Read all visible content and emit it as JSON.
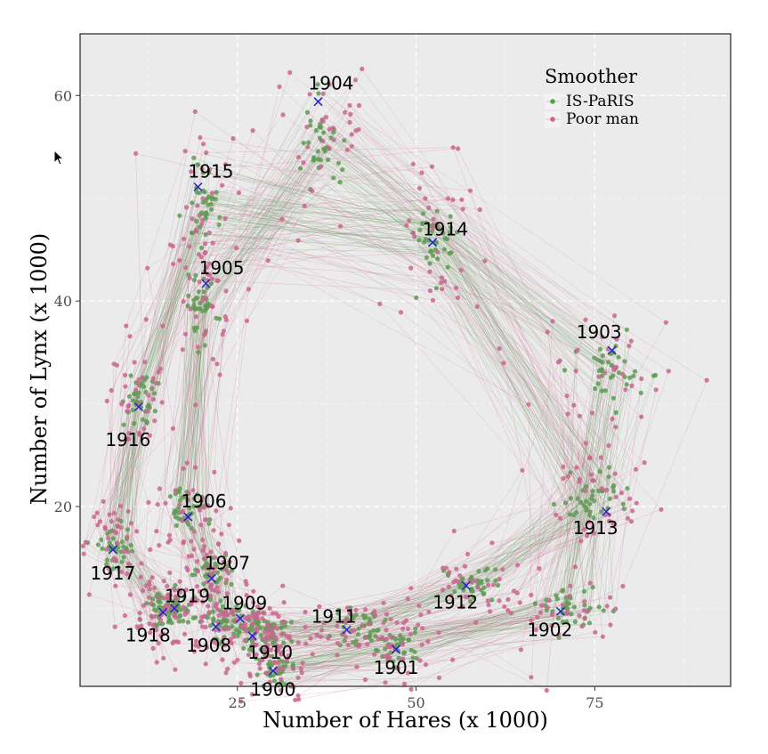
{
  "chart_data": {
    "type": "scatter",
    "xlabel": "Number of Hares (x 1000)",
    "ylabel": "Number of Lynx (x 1000)",
    "xlim": [
      3,
      94
    ],
    "ylim": [
      2.5,
      66
    ],
    "xticks": [
      25,
      50,
      75
    ],
    "yticks": [
      20,
      40,
      60
    ],
    "grid": true,
    "legend": {
      "title": "Smoother",
      "placement": "top-right",
      "entries": [
        {
          "name": "IS-PaRIS",
          "color": "#5f9a55"
        },
        {
          "name": "Poor man",
          "color": "#c9668f"
        }
      ]
    },
    "colors": {
      "panel": "#ebebeb",
      "grid": "#ffffff",
      "is_paris": "#5f9a55",
      "poor_man": "#c9668f",
      "observation": "#2323c8"
    },
    "observations": [
      {
        "year": "1900",
        "x": 30,
        "y": 4
      },
      {
        "year": "1901",
        "x": 47.2,
        "y": 6.1
      },
      {
        "year": "1902",
        "x": 70.2,
        "y": 9.8
      },
      {
        "year": "1903",
        "x": 77.4,
        "y": 35.2
      },
      {
        "year": "1904",
        "x": 36.3,
        "y": 59.4
      },
      {
        "year": "1905",
        "x": 20.6,
        "y": 41.7
      },
      {
        "year": "1906",
        "x": 18.1,
        "y": 19
      },
      {
        "year": "1907",
        "x": 21.4,
        "y": 13
      },
      {
        "year": "1908",
        "x": 22,
        "y": 8.3
      },
      {
        "year": "1909",
        "x": 25.4,
        "y": 9.1
      },
      {
        "year": "1910",
        "x": 27.1,
        "y": 7.4
      },
      {
        "year": "1911",
        "x": 40.3,
        "y": 8
      },
      {
        "year": "1912",
        "x": 57,
        "y": 12.3
      },
      {
        "year": "1913",
        "x": 76.6,
        "y": 19.5
      },
      {
        "year": "1914",
        "x": 52.3,
        "y": 45.7
      },
      {
        "year": "1915",
        "x": 19.5,
        "y": 51.1
      },
      {
        "year": "1916",
        "x": 11.2,
        "y": 29.7
      },
      {
        "year": "1917",
        "x": 7.6,
        "y": 15.8
      },
      {
        "year": "1918",
        "x": 14.6,
        "y": 9.7
      },
      {
        "year": "1919",
        "x": 16.2,
        "y": 10.1
      }
    ],
    "smoother_states": [
      {
        "year": "1900",
        "x": 30,
        "y": 4.2
      },
      {
        "year": "1901",
        "x": 47,
        "y": 6.2
      },
      {
        "year": "1902",
        "x": 71,
        "y": 10.2
      },
      {
        "year": "1903",
        "x": 76.8,
        "y": 33.2
      },
      {
        "year": "1904",
        "x": 37,
        "y": 55.5
      },
      {
        "year": "1905",
        "x": 20.2,
        "y": 39.5
      },
      {
        "year": "1906",
        "x": 17.8,
        "y": 19.6
      },
      {
        "year": "1907",
        "x": 21.2,
        "y": 13.4
      },
      {
        "year": "1908",
        "x": 23,
        "y": 9
      },
      {
        "year": "1909",
        "x": 26.5,
        "y": 8.2
      },
      {
        "year": "1910",
        "x": 29.5,
        "y": 7.8
      },
      {
        "year": "1911",
        "x": 42,
        "y": 8.2
      },
      {
        "year": "1912",
        "x": 58,
        "y": 12.3
      },
      {
        "year": "1913",
        "x": 75,
        "y": 20.3
      },
      {
        "year": "1914",
        "x": 52.6,
        "y": 45.6
      },
      {
        "year": "1915",
        "x": 20.3,
        "y": 49.5
      },
      {
        "year": "1916",
        "x": 11.5,
        "y": 30.5
      },
      {
        "year": "1917",
        "x": 8,
        "y": 16.3
      },
      {
        "year": "1918",
        "x": 14.5,
        "y": 10.1
      },
      {
        "year": "1919",
        "x": 16.8,
        "y": 9.8
      }
    ],
    "year_label_offsets": [
      {
        "year": "1900",
        "dx": 0,
        "dy": -1.8
      },
      {
        "year": "1901",
        "dx": 0,
        "dy": -1.8
      },
      {
        "year": "1902",
        "dx": -1.5,
        "dy": -1.8
      },
      {
        "year": "1903",
        "dx": -1.8,
        "dy": 1.8
      },
      {
        "year": "1904",
        "dx": 1.8,
        "dy": 1.8
      },
      {
        "year": "1905",
        "dx": 2.2,
        "dy": 1.5
      },
      {
        "year": "1906",
        "dx": 2.2,
        "dy": 1.5
      },
      {
        "year": "1907",
        "dx": 2.2,
        "dy": 1.5
      },
      {
        "year": "1908",
        "dx": -1,
        "dy": -1.8
      },
      {
        "year": "1909",
        "dx": 0.6,
        "dy": 1.5
      },
      {
        "year": "1910",
        "dx": 2.5,
        "dy": -1.6
      },
      {
        "year": "1911",
        "dx": -1.8,
        "dy": 1.3
      },
      {
        "year": "1912",
        "dx": -1.5,
        "dy": -1.6
      },
      {
        "year": "1913",
        "dx": -1.5,
        "dy": -1.6
      },
      {
        "year": "1914",
        "dx": 1.8,
        "dy": 1.3
      },
      {
        "year": "1915",
        "dx": 1.8,
        "dy": 1.5
      },
      {
        "year": "1916",
        "dx": -1.5,
        "dy": -3.2
      },
      {
        "year": "1917",
        "dx": 0,
        "dy": -2.3
      },
      {
        "year": "1918",
        "dx": -2.1,
        "dy": -2.2
      },
      {
        "year": "1919",
        "dx": 1.8,
        "dy": 1.2
      }
    ]
  }
}
